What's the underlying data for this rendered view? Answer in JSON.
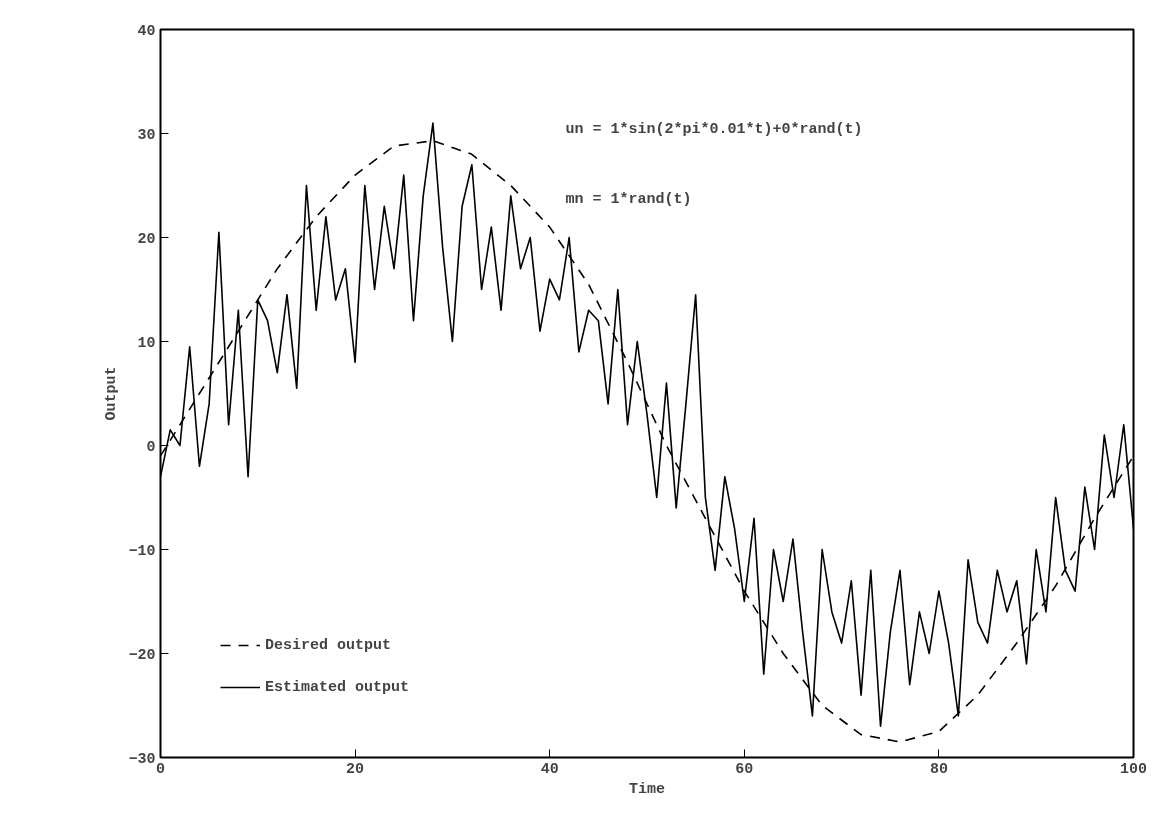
{
  "chart_data": {
    "type": "line",
    "xlabel": "Time",
    "ylabel": "Output",
    "xlim": [
      0,
      100
    ],
    "ylim": [
      -30,
      40
    ],
    "xticks": [
      {
        "value": 0,
        "label": "0"
      },
      20,
      40,
      60,
      80,
      100
    ],
    "yticks": [
      -30,
      -20,
      -10,
      {
        "value": 0,
        "label": "0"
      },
      10,
      20,
      30,
      40
    ],
    "grid": false,
    "legend": "bottom left",
    "annotations": [
      "un = 1*sin(2*pi*0.01*t)+0*rand(t)",
      "mn = 1*rand(t)"
    ],
    "series": [
      {
        "name": "Desired output",
        "color": "#000000",
        "line_style": "dashed",
        "x": [
          0,
          4,
          8,
          12,
          16,
          20,
          24,
          28,
          32,
          36,
          40,
          44,
          48,
          52,
          56,
          60,
          64,
          68,
          72,
          76,
          80,
          84,
          88,
          92,
          96,
          100
        ],
        "values": [
          -1,
          5,
          11,
          17,
          22,
          26,
          28.8,
          29.3,
          28,
          25,
          21,
          15.5,
          8,
          0,
          -7,
          -14,
          -20,
          -25,
          -27.8,
          -28.5,
          -27.5,
          -24,
          -19,
          -13.5,
          -7,
          -1
        ]
      },
      {
        "name": "Estimated output",
        "color": "#000000",
        "line_style": "solid",
        "x": [
          0,
          1,
          2,
          3,
          4,
          5,
          6,
          7,
          8,
          9,
          10,
          11,
          12,
          13,
          14,
          15,
          16,
          17,
          18,
          19,
          20,
          21,
          22,
          23,
          24,
          25,
          26,
          27,
          28,
          29,
          30,
          31,
          32,
          33,
          34,
          35,
          36,
          37,
          38,
          39,
          40,
          41,
          42,
          43,
          44,
          45,
          46,
          47,
          48,
          49,
          50,
          51,
          52,
          53,
          54,
          55,
          56,
          57,
          58,
          59,
          60,
          61,
          62,
          63,
          64,
          65,
          66,
          67,
          68,
          69,
          70,
          71,
          72,
          73,
          74,
          75,
          76,
          77,
          78,
          79,
          80,
          81,
          82,
          83,
          84,
          85,
          86,
          87,
          88,
          89,
          90,
          91,
          92,
          93,
          94,
          95,
          96,
          97,
          98,
          99,
          100
        ],
        "values": [
          -3,
          1.5,
          0,
          9.5,
          -2,
          4,
          20.5,
          2,
          13,
          -3,
          14,
          12,
          7,
          14.5,
          5.5,
          25,
          13,
          22,
          14,
          17,
          8,
          25,
          15,
          23,
          17,
          26,
          12,
          24,
          31,
          19,
          10,
          23,
          27,
          15,
          21,
          13,
          24,
          17,
          20,
          11,
          16,
          14,
          20,
          9,
          13,
          12,
          4,
          15,
          2,
          10,
          3,
          -5,
          6,
          -6,
          4,
          14.5,
          -5,
          -12,
          -3,
          -8,
          -15,
          -7,
          -22,
          -10,
          -15,
          -9,
          -18,
          -26,
          -10,
          -16,
          -19,
          -13,
          -24,
          -12,
          -27,
          -18,
          -12,
          -23,
          -16,
          -20,
          -14,
          -19,
          -26,
          -11,
          -17,
          -19,
          -12,
          -16,
          -13,
          -21,
          -10,
          -16,
          -5,
          -12,
          -14,
          -4,
          -10,
          1,
          -5,
          2,
          -8
        ]
      }
    ]
  }
}
